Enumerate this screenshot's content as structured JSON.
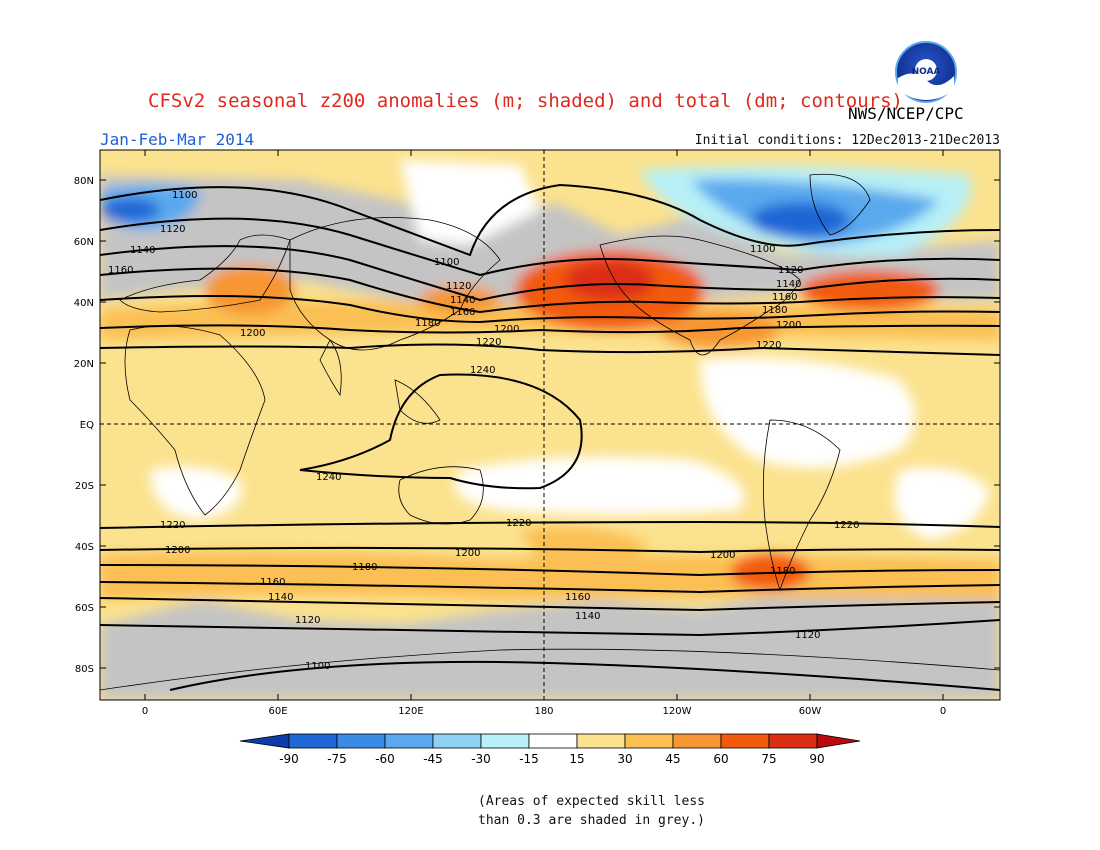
{
  "header": {
    "title": "CFSv2 seasonal z200 anomalies (m; shaded) and total (dm; contours)",
    "agency": "NWS/NCEP/CPC",
    "period": "Jan-Feb-Mar 2014",
    "initial_conditions": "Initial conditions: 12Dec2013-21Dec2013",
    "logo_text": "NOAA"
  },
  "axes": {
    "lat_labels": [
      "80N",
      "60N",
      "40N",
      "20N",
      "EQ",
      "20S",
      "40S",
      "60S",
      "80S"
    ],
    "lon_labels": [
      "0",
      "60E",
      "120E",
      "180",
      "120W",
      "60W",
      "0"
    ]
  },
  "colors": {
    "grey": "#c4c4c4",
    "white": "#ffffff",
    "y15": "#fbe28e",
    "y30": "#fbbf52",
    "o45": "#f79632",
    "o60": "#f25a0e",
    "r75": "#dc2e12",
    "r90": "#b80b0b",
    "b15": "#b7f0f7",
    "b30": "#8fd0f5",
    "b45": "#5aa9ee",
    "b60": "#3a8ae6",
    "b75": "#1f66d6",
    "b90": "#0c3da8"
  },
  "contours": [
    {
      "value": "1100",
      "lat": 70
    },
    {
      "value": "1120",
      "lat": 60
    },
    {
      "value": "1140",
      "lat": 50
    },
    {
      "value": "1160",
      "lat": 43
    },
    {
      "value": "1180",
      "lat": 36
    },
    {
      "value": "1200",
      "lat": 29
    },
    {
      "value": "1220",
      "lat": 22
    },
    {
      "value": "1240",
      "lat": 8
    },
    {
      "value": "1240",
      "lat": -17
    },
    {
      "value": "1220",
      "lat": -33
    },
    {
      "value": "1200",
      "lat": -41
    },
    {
      "value": "1180",
      "lat": -47
    },
    {
      "value": "1160",
      "lat": -54
    },
    {
      "value": "1140",
      "lat": -59
    },
    {
      "value": "1120",
      "lat": -66
    },
    {
      "value": "1100",
      "lat": -80
    }
  ],
  "colorbar": {
    "labels": [
      "-90",
      "-75",
      "-60",
      "-45",
      "-30",
      "-15",
      "15",
      "30",
      "45",
      "60",
      "75",
      "90"
    ],
    "swatches": [
      "#1f66d6",
      "#3a8ae6",
      "#5aa9ee",
      "#8fd0f5",
      "#b7f0f7",
      "#ffffff",
      "#fbe28e",
      "#fbbf52",
      "#f79632",
      "#f25a0e",
      "#dc2e12"
    ]
  },
  "note": {
    "line1": "(Areas of expected skill less",
    "line2": "than 0.3 are shaded in grey.)"
  }
}
